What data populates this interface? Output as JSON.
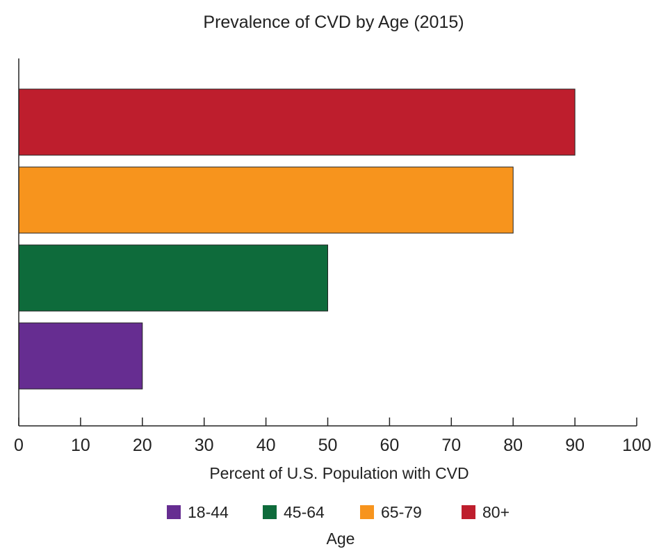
{
  "chart_data": {
    "type": "bar",
    "orientation": "horizontal",
    "title": "Prevalence of CVD by Age (2015)",
    "xlabel": "Percent of U.S. Population with CVD",
    "ylabel": "",
    "xlim": [
      0,
      100
    ],
    "xticks": [
      0,
      10,
      20,
      30,
      40,
      50,
      60,
      70,
      80,
      90,
      100
    ],
    "grid": false,
    "categories": [
      "18-44",
      "45-64",
      "65-79",
      "80+"
    ],
    "values": [
      20,
      50,
      80,
      90
    ],
    "colors": [
      "#662d91",
      "#0e6b3b",
      "#f7941d",
      "#be1e2d"
    ],
    "legend": {
      "title": "Age",
      "placement": "bottom",
      "entries": [
        "18-44",
        "45-64",
        "65-79",
        "80+"
      ]
    }
  }
}
